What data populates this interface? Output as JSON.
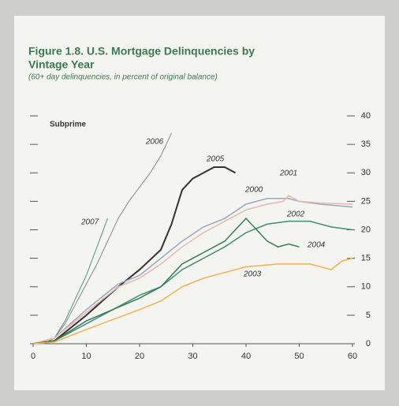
{
  "chart_data": {
    "type": "line",
    "title": [
      "Figure 1.8. U.S. Mortgage Delinquencies by",
      "Vintage Year"
    ],
    "subtitle": "(60+ day delinquencies, in percent of original balance)",
    "annotation": "Subprime",
    "xlim": [
      0,
      60
    ],
    "xticks": [
      0,
      10,
      20,
      30,
      40,
      50,
      60
    ],
    "ylim": [
      0,
      40
    ],
    "yticks": [
      0,
      5,
      10,
      15,
      20,
      25,
      30,
      35,
      40
    ],
    "series": [
      {
        "name": "2007",
        "color": "#4f9a78",
        "width": 1,
        "x": [
          0,
          2,
          4,
          6,
          8,
          10,
          12,
          14
        ],
        "values": [
          0,
          0,
          1,
          4,
          8,
          12,
          17,
          22
        ]
      },
      {
        "name": "2006",
        "color": "#888888",
        "width": 1,
        "x": [
          0,
          2,
          4,
          6,
          8,
          10,
          12,
          14,
          16,
          18,
          20,
          22,
          24,
          26
        ],
        "values": [
          0,
          0,
          1,
          3.5,
          7,
          10.5,
          14,
          18,
          22,
          25,
          27.5,
          30,
          33,
          37
        ]
      },
      {
        "name": "2005",
        "color": "#333333",
        "width": 2,
        "x": [
          0,
          4,
          10,
          16,
          20,
          24,
          26,
          27,
          28,
          30,
          32,
          34,
          36,
          38
        ],
        "values": [
          0,
          0.5,
          5,
          10,
          13,
          16.5,
          21,
          24,
          27,
          29,
          30,
          31,
          31,
          30
        ]
      },
      {
        "name": "2000",
        "color": "#9aa6c4",
        "width": 1.5,
        "x": [
          0,
          4,
          10,
          16,
          20,
          24,
          28,
          32,
          36,
          40,
          44,
          48,
          50,
          54,
          60
        ],
        "values": [
          0,
          1,
          6,
          10.5,
          12,
          15,
          18,
          20.5,
          22,
          24.5,
          25.5,
          25.5,
          25,
          24.5,
          24
        ]
      },
      {
        "name": "2001",
        "color": "#e8b9a8",
        "width": 1.5,
        "x": [
          0,
          4,
          10,
          16,
          20,
          24,
          28,
          32,
          36,
          40,
          44,
          47,
          48,
          50,
          54,
          60
        ],
        "values": [
          0,
          1,
          5.5,
          10,
          11.5,
          14,
          17,
          19.5,
          21.5,
          23.5,
          24.5,
          25,
          26,
          25,
          24.7,
          24.5
        ]
      },
      {
        "name": "2002",
        "color": "#3f8f6e",
        "width": 1.5,
        "x": [
          0,
          4,
          10,
          20,
          24,
          28,
          32,
          36,
          40,
          44,
          48,
          52,
          56,
          60
        ],
        "values": [
          0,
          0.5,
          3.5,
          8.5,
          10,
          13,
          15,
          17,
          19.5,
          21,
          21.5,
          21.5,
          20.5,
          20
        ]
      },
      {
        "name": "2004",
        "color": "#2f7d55",
        "width": 1.5,
        "x": [
          0,
          4,
          10,
          20,
          24,
          28,
          32,
          36,
          38,
          40,
          42,
          44,
          46,
          48,
          50
        ],
        "values": [
          0,
          0.5,
          4,
          8,
          10,
          14,
          16,
          18,
          20,
          22,
          20,
          18,
          17,
          17.5,
          17
        ]
      },
      {
        "name": "2003",
        "color": "#f2b24a",
        "width": 1.5,
        "x": [
          0,
          4,
          10,
          20,
          24,
          28,
          32,
          36,
          40,
          46,
          52,
          54,
          56,
          58,
          60
        ],
        "values": [
          0,
          0.3,
          2.5,
          6,
          7.5,
          10,
          11.5,
          12.5,
          13.5,
          14,
          14,
          13.5,
          13,
          14.5,
          15
        ]
      }
    ]
  }
}
